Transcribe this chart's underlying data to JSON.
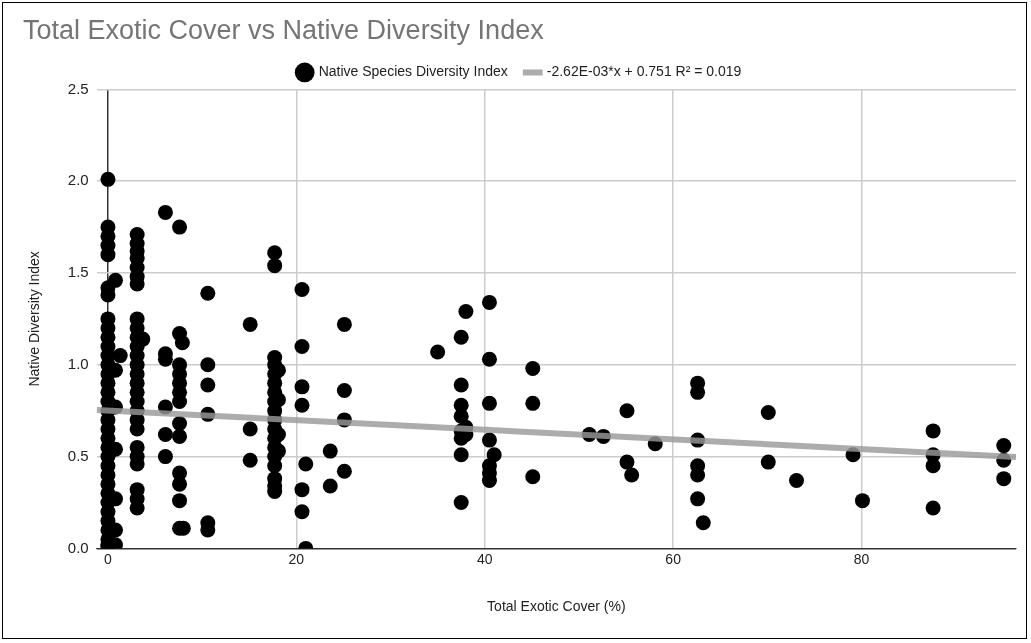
{
  "chart_data": {
    "type": "scatter",
    "title": "Total Exotic Cover vs Native Diversity Index",
    "xlabel": "Total Exotic Cover (%)",
    "ylabel": "Native Diversity Index",
    "xlim": [
      -1.2,
      96.4
    ],
    "xticks": [
      0,
      20,
      40,
      60,
      80
    ],
    "ylim": [
      0,
      2.5
    ],
    "yticks": [
      {
        "value": 0,
        "label": "0.0"
      },
      {
        "value": 0.5,
        "label": "0.5"
      },
      {
        "value": 1,
        "label": "1.0"
      },
      {
        "value": 1.5,
        "label": "1.5"
      },
      {
        "value": 2,
        "label": "2.0"
      },
      {
        "value": 2.5,
        "label": "2.5"
      }
    ],
    "grid": true,
    "legend": "top",
    "marker": "circle",
    "series": [
      {
        "name": "Native Species Diversity Index",
        "color": "#000000",
        "x": [
          0,
          0,
          0,
          0,
          0,
          0,
          0,
          0,
          0,
          0,
          0,
          0,
          0,
          0,
          0,
          0,
          0,
          0,
          0,
          0,
          0,
          0,
          0,
          0,
          0,
          0,
          0,
          0,
          0,
          0,
          0,
          0,
          0,
          0,
          0.8,
          1.3,
          0.8,
          0.8,
          0.8,
          0.8,
          0.8,
          0.8,
          3.1,
          3.1,
          3.1,
          3.1,
          3.1,
          3.1,
          3.1,
          3.1,
          3.1,
          3.1,
          3.1,
          3.1,
          3.1,
          3.1,
          3.1,
          3.1,
          3.1,
          3.1,
          3.1,
          3.1,
          3.1,
          3.1,
          3.1,
          3.1,
          3.1,
          3.1,
          3.7,
          6.1,
          6.1,
          6.1,
          6.1,
          6.1,
          6.1,
          7.6,
          7.6,
          7.9,
          7.6,
          7.6,
          7.6,
          7.6,
          7.6,
          7.6,
          7.6,
          7.6,
          7.6,
          7.6,
          7.6,
          8,
          10.6,
          10.6,
          10.6,
          10.6,
          10.6,
          10.6,
          15.1,
          15.1,
          15.1,
          17.7,
          17.7,
          17.7,
          17.7,
          17.7,
          17.7,
          17.7,
          17.7,
          17.7,
          17.7,
          17.7,
          17.7,
          17.7,
          17.7,
          17.7,
          17.7,
          17.7,
          17.7,
          18.1,
          18.1,
          18.1,
          18.1,
          20.6,
          20.6,
          20.6,
          20.6,
          20.6,
          20.6,
          21,
          21,
          23.6,
          23.6,
          25.1,
          25.1,
          25.1,
          25.1,
          35,
          37.5,
          37.5,
          37.5,
          37.5,
          37.5,
          37.5,
          37.5,
          37.5,
          38,
          38,
          38,
          40.5,
          40.5,
          40.5,
          40.5,
          40.5,
          40.5,
          40.5,
          41,
          45.1,
          45.1,
          45.1,
          51.1,
          52.6,
          55.1,
          55.1,
          55.6,
          58.1,
          62.6,
          62.6,
          62.6,
          62.6,
          62.6,
          62.6,
          63.2,
          70.1,
          70.1,
          73.1,
          79.1,
          80.1,
          87.6,
          87.6,
          87.6,
          87.6,
          95.1,
          95.1,
          95.1
        ],
        "values": [
          2.01,
          1.75,
          1.7,
          1.65,
          1.6,
          1.42,
          1.38,
          1.25,
          1.2,
          1.15,
          1.1,
          1.05,
          1,
          0.95,
          0.9,
          0.85,
          0.8,
          0.75,
          0.7,
          0.65,
          0.6,
          0.55,
          0.5,
          0.45,
          0.4,
          0.35,
          0.3,
          0.25,
          0.2,
          0.15,
          0.1,
          0.05,
          0.02,
          0.01,
          1.46,
          1.05,
          0.97,
          0.77,
          0.54,
          0.27,
          0.1,
          0.02,
          1.71,
          1.66,
          1.62,
          1.58,
          1.53,
          1.48,
          1.44,
          1.25,
          1.2,
          1.15,
          1.1,
          1.05,
          1,
          0.95,
          0.9,
          0.85,
          0.8,
          0.75,
          0.7,
          0.65,
          0.55,
          0.5,
          0.46,
          0.32,
          0.27,
          0.22,
          1.14,
          1.83,
          1.06,
          1.03,
          0.77,
          0.62,
          0.5,
          1.75,
          1.17,
          1.12,
          1,
          0.95,
          0.9,
          0.85,
          0.8,
          0.68,
          0.61,
          0.41,
          0.35,
          0.26,
          0.11,
          0.11,
          1.39,
          1,
          0.89,
          0.73,
          0.14,
          0.1,
          1.22,
          0.65,
          0.48,
          1.61,
          1.54,
          1.04,
          1,
          0.95,
          0.9,
          0.85,
          0.8,
          0.75,
          0.7,
          0.65,
          0.6,
          0.55,
          0.5,
          0.45,
          0.38,
          0.34,
          0.31,
          0.97,
          0.81,
          0.62,
          0.53,
          1.41,
          1.1,
          0.88,
          0.78,
          0.32,
          0.2,
          0.46,
          0,
          0.53,
          0.34,
          1.22,
          0.86,
          0.7,
          0.42,
          1.07,
          1.15,
          0.89,
          0.78,
          0.72,
          0.64,
          0.6,
          0.51,
          0.25,
          1.29,
          0.66,
          0.62,
          1.34,
          1.03,
          0.79,
          0.59,
          0.45,
          0.41,
          0.37,
          0.51,
          0.98,
          0.79,
          0.39,
          0.62,
          0.61,
          0.75,
          0.47,
          0.4,
          0.57,
          0.9,
          0.85,
          0.59,
          0.45,
          0.4,
          0.27,
          0.14,
          0.74,
          0.47,
          0.37,
          0.51,
          0.26,
          0.64,
          0.51,
          0.45,
          0.22,
          0.56,
          0.48,
          0.38
        ]
      },
      {
        "name": "-2.62E-03*x + 0.751 R² = 0.019",
        "type": "line",
        "marker": "none",
        "color": "#999999",
        "x": [
          -1.2,
          96.4
        ],
        "values": [
          0.754,
          0.498
        ]
      }
    ]
  }
}
